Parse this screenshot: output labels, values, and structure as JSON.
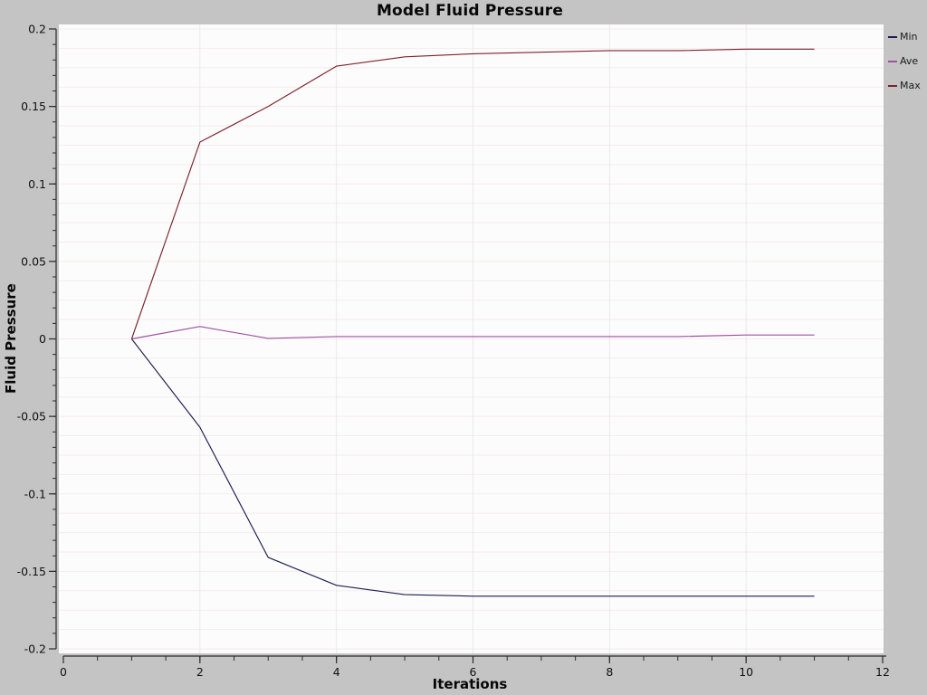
{
  "window": {
    "background_color": "#c4c4c4",
    "plot_background_color": "#fdfcfc",
    "axis_color": "#2b2b2b",
    "tick_label_color": "#111111",
    "grid_h_color": "#f5ecec",
    "grid_v_color": "#ebe9e9"
  },
  "chart_data": {
    "type": "line",
    "title": "Model Fluid Pressure",
    "xlabel": "Iterations",
    "ylabel": "Fluid Pressure",
    "xlim": [
      0,
      12
    ],
    "ylim": [
      -0.2,
      0.2
    ],
    "grid": true,
    "grid_h_step": 0.0125,
    "grid_v_values": [
      2,
      4,
      6,
      8,
      10
    ],
    "x_ticks": [
      {
        "value": 0,
        "label": "0"
      },
      {
        "value": 2,
        "label": "2"
      },
      {
        "value": 4,
        "label": "4"
      },
      {
        "value": 6,
        "label": "6"
      },
      {
        "value": 8,
        "label": "8"
      },
      {
        "value": 10,
        "label": "10"
      },
      {
        "value": 12,
        "label": "12"
      }
    ],
    "x_minor_step": 0.5,
    "y_ticks": [
      {
        "value": 0.2,
        "label": "0.2"
      },
      {
        "value": 0.15,
        "label": "0.15"
      },
      {
        "value": 0.1,
        "label": "0.1"
      },
      {
        "value": 0.05,
        "label": "0.05"
      },
      {
        "value": 0,
        "label": "0"
      },
      {
        "value": -0.05,
        "label": "-0.05"
      },
      {
        "value": -0.1,
        "label": "-0.1"
      },
      {
        "value": -0.15,
        "label": "-0.15"
      },
      {
        "value": -0.2,
        "label": "-0.2"
      }
    ],
    "y_minor_step": 0.01,
    "legend_position": "top-right",
    "x": [
      1,
      2,
      3,
      4,
      5,
      6,
      7,
      8,
      9,
      10,
      11
    ],
    "series": [
      {
        "name": "Min",
        "color": "#1c1c52",
        "values": [
          0,
          -0.057,
          -0.141,
          -0.159,
          -0.165,
          -0.166,
          -0.166,
          -0.166,
          -0.166,
          -0.166,
          -0.166
        ]
      },
      {
        "name": "Ave",
        "color": "#a050a0",
        "values": [
          0,
          0.008,
          0.0003,
          0.0015,
          0.0015,
          0.0015,
          0.0015,
          0.0015,
          0.0015,
          0.0025,
          0.0025
        ]
      },
      {
        "name": "Max",
        "color": "#7b222e",
        "values": [
          0,
          0.127,
          0.15,
          0.176,
          0.182,
          0.184,
          0.185,
          0.186,
          0.186,
          0.187,
          0.187
        ]
      }
    ]
  }
}
